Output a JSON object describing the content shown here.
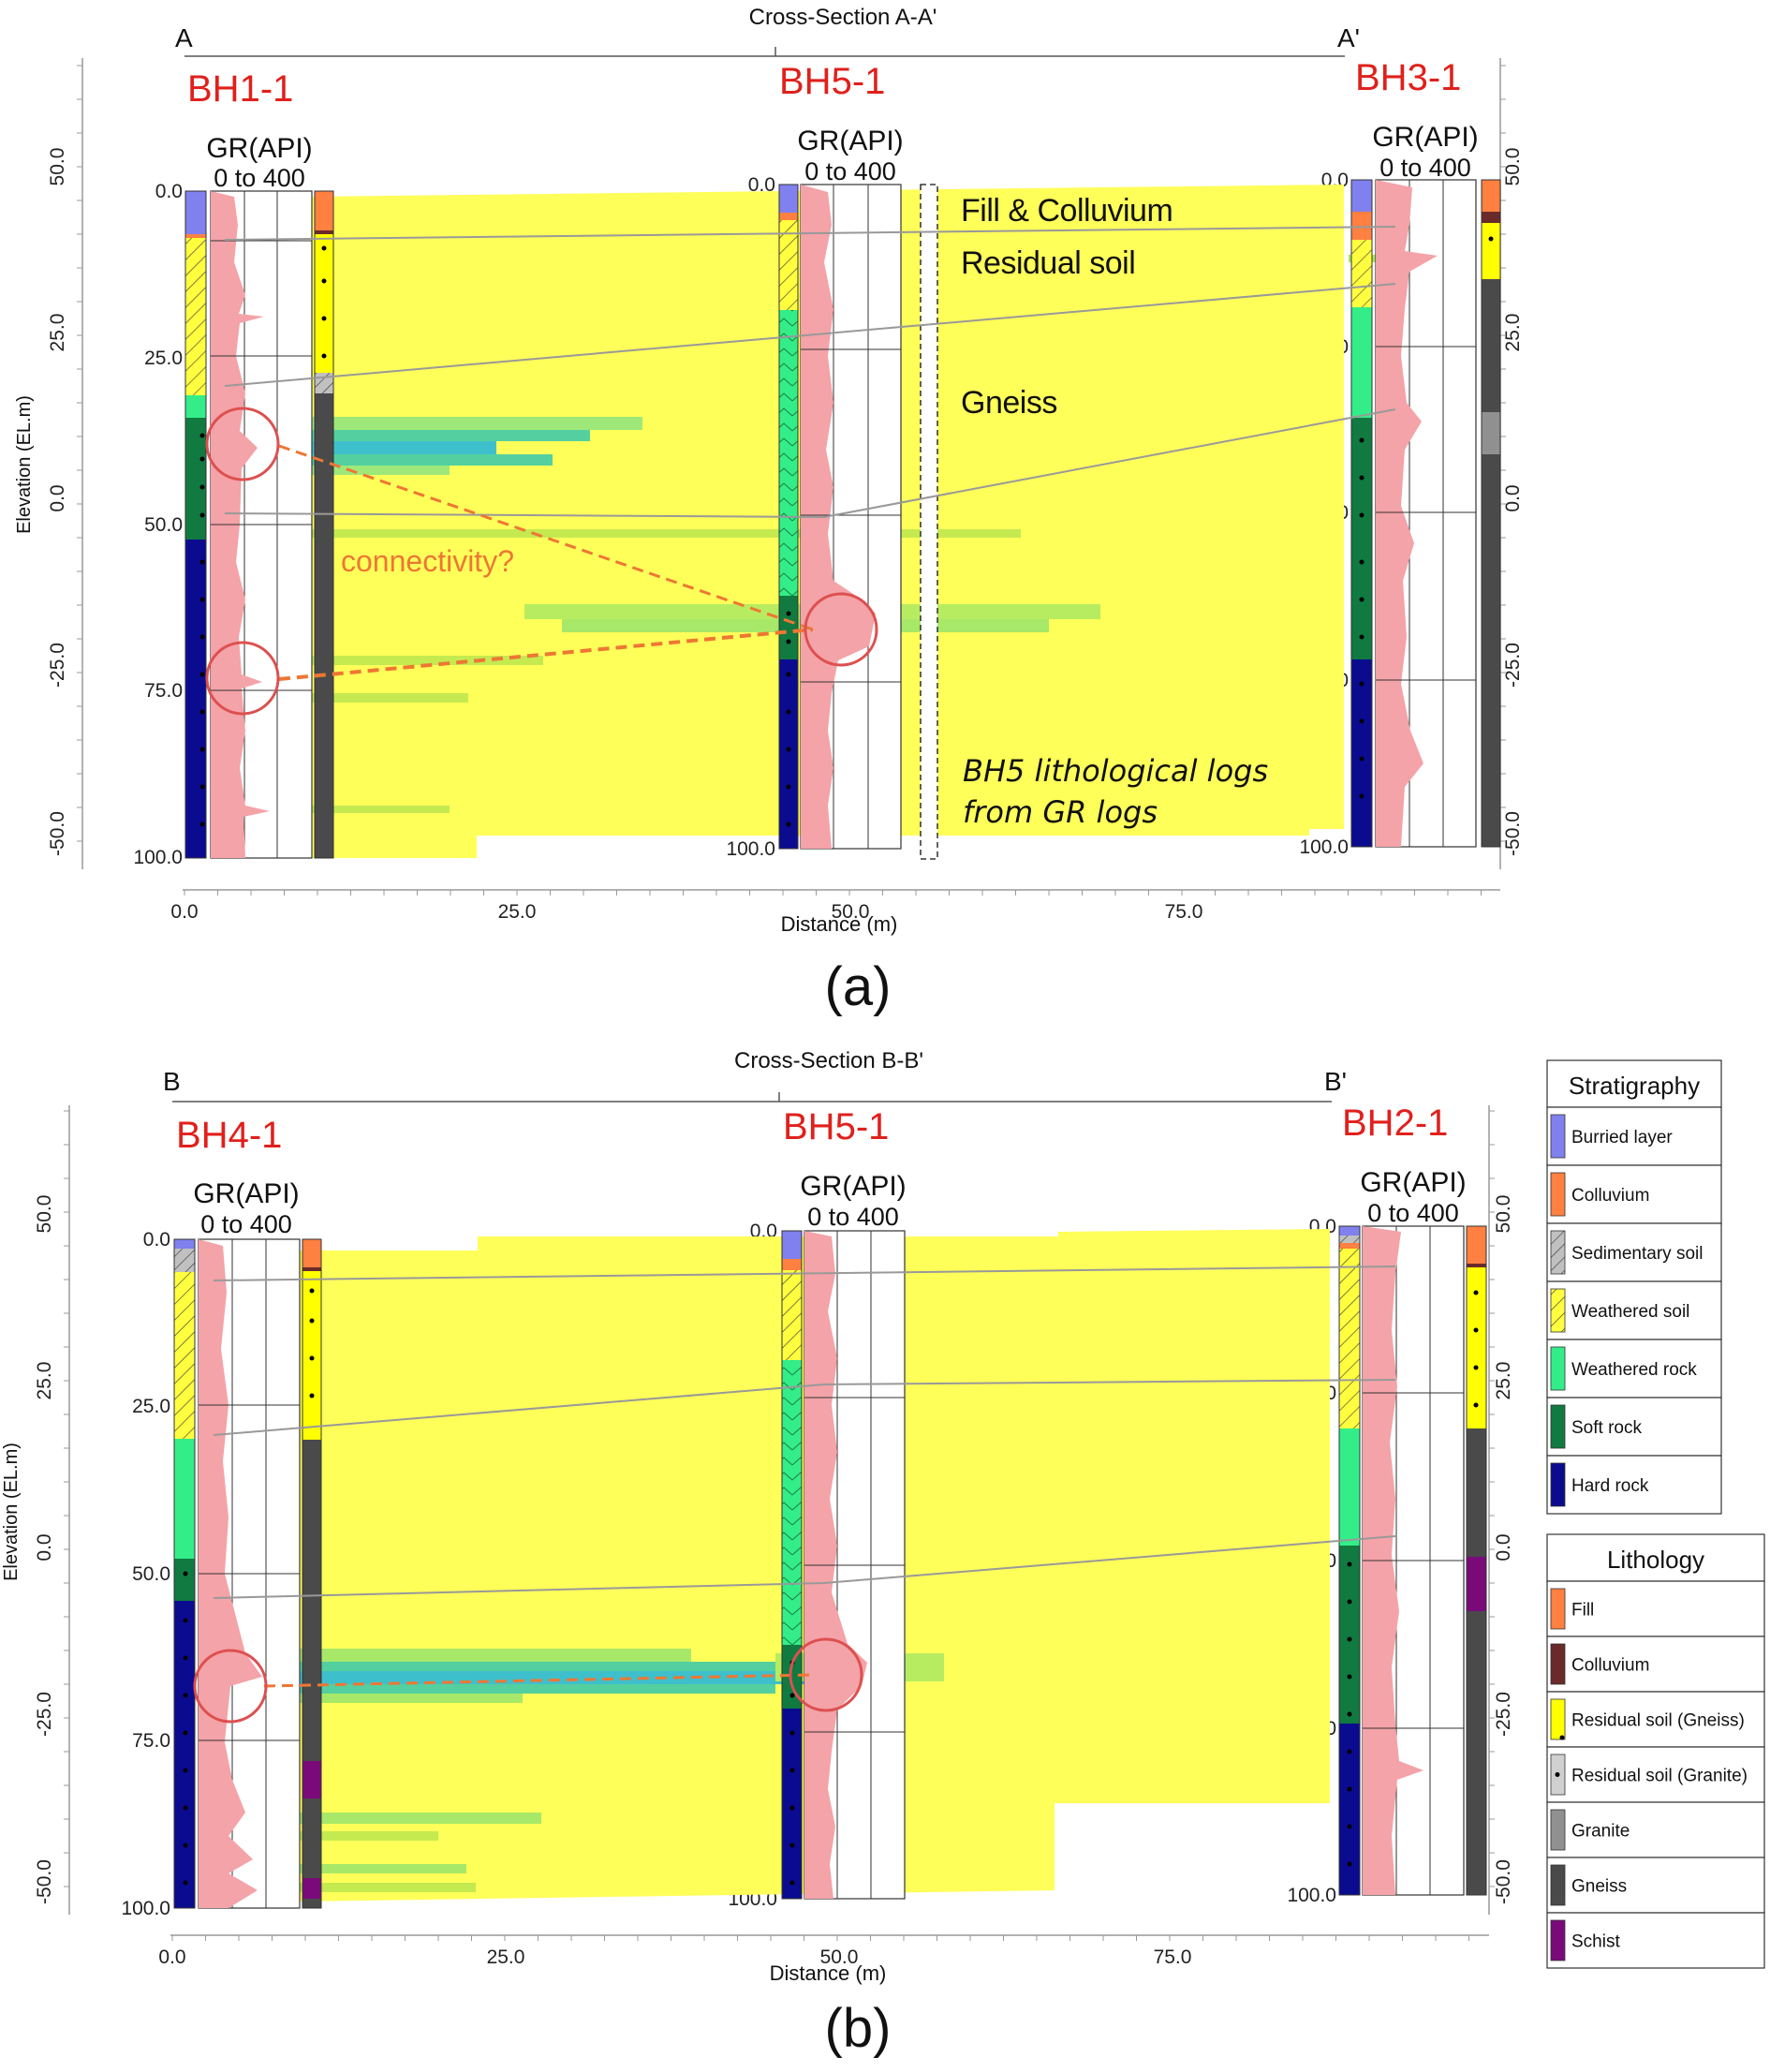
{
  "colors": {
    "buried": "#8080ee",
    "colluvium": "#ff8040",
    "sedimentary": "#c0c0c0",
    "weathered_soil": "#ffff40",
    "weathered_rock": "#33ee88",
    "soft_rock": "#117a40",
    "hard_rock": "#0b0b90",
    "fill": "#ff8040",
    "colluvium_litho": "#6a2a2a",
    "residual_gneiss": "#ffff00",
    "residual_granite": "#d0d0d0",
    "granite": "#909090",
    "gneiss": "#4a4a4a",
    "schist": "#7a0a7a",
    "gr": "#f4a3a8",
    "section": "#ffff5a",
    "accent": "#e0201c",
    "dash": "#ee7733",
    "circle": "#dd5050"
  },
  "panel_a": {
    "title": "Cross-Section A-A'",
    "left_end": "A",
    "right_end": "A'",
    "boreholes": [
      {
        "name": "BH1-1",
        "gr_title": "GR(API)",
        "gr_range": "0 to 400"
      },
      {
        "name": "BH5-1",
        "gr_title": "GR(API)",
        "gr_range": "0 to 400"
      },
      {
        "name": "BH3-1",
        "gr_title": "GR(API)",
        "gr_range": "0 to 400"
      }
    ],
    "labels": {
      "fill_colluvium": "Fill & Colluvium",
      "residual_soil": "Residual soil",
      "gneiss": "Gneiss",
      "connectivity": "connectivity?",
      "note_line1": "BH5 lithological logs",
      "note_line2": "from GR logs"
    },
    "caption": "(a)"
  },
  "panel_b": {
    "title": "Cross-Section B-B'",
    "left_end": "B",
    "right_end": "B'",
    "boreholes": [
      {
        "name": "BH4-1",
        "gr_title": "GR(API)",
        "gr_range": "0 to 400"
      },
      {
        "name": "BH5-1",
        "gr_title": "GR(API)",
        "gr_range": "0 to 400"
      },
      {
        "name": "BH2-1",
        "gr_title": "GR(API)",
        "gr_range": "0 to 400"
      }
    ],
    "caption": "(b)"
  },
  "axes": {
    "elevation_label": "Elevation (EL.m)",
    "distance_label": "Distance (m)",
    "elevation_ticks": [
      "50.0",
      "25.0",
      "0.0",
      "-25.0",
      "-50.0"
    ],
    "depth_ticks": [
      "0.0",
      "25.0",
      "50.0",
      "75.0",
      "100.0"
    ],
    "distance_ticks": [
      "0.0",
      "25.0",
      "50.0",
      "75.0"
    ]
  },
  "legend": {
    "stratigraphy_title": "Stratigraphy",
    "stratigraphy": [
      "Burried layer",
      "Colluvium",
      "Sedimentary soil",
      "Weathered soil",
      "Weathered rock",
      "Soft rock",
      "Hard rock"
    ],
    "lithology_title": "Lithology",
    "lithology": [
      "Fill",
      "Colluvium",
      "Residual soil (Gneiss)",
      "Residual soil (Granite)",
      "Granite",
      "Gneiss",
      "Schist"
    ]
  }
}
